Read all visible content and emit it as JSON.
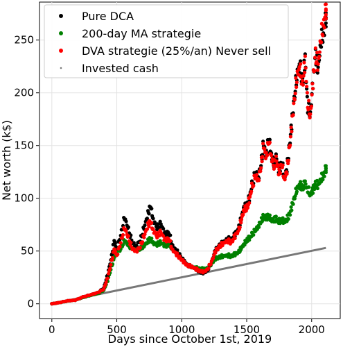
{
  "chart_data": {
    "type": "scatter",
    "xlabel": "Days since October 1st, 2019",
    "ylabel": "Net worth (k$)",
    "xlim": [
      -95,
      2220
    ],
    "ylim": [
      -14,
      286
    ],
    "xticks": [
      0,
      500,
      1000,
      1500,
      2000
    ],
    "yticks": [
      0,
      50,
      100,
      150,
      200,
      250
    ],
    "grid": true,
    "legend_position": "top-left",
    "series": [
      {
        "name": "Pure DCA",
        "color": "#000000",
        "marker": "dot",
        "points": [
          [
            0,
            0
          ],
          [
            60,
            1.2
          ],
          [
            120,
            2.8
          ],
          [
            180,
            3.5
          ],
          [
            240,
            6.5
          ],
          [
            300,
            8.5
          ],
          [
            360,
            11
          ],
          [
            400,
            15
          ],
          [
            430,
            28
          ],
          [
            460,
            45
          ],
          [
            480,
            60
          ],
          [
            500,
            52
          ],
          [
            530,
            65
          ],
          [
            560,
            82
          ],
          [
            590,
            70
          ],
          [
            620,
            58
          ],
          [
            650,
            55
          ],
          [
            680,
            60
          ],
          [
            710,
            72
          ],
          [
            740,
            85
          ],
          [
            760,
            93
          ],
          [
            780,
            80
          ],
          [
            810,
            72
          ],
          [
            840,
            76
          ],
          [
            870,
            66
          ],
          [
            900,
            68
          ],
          [
            930,
            55
          ],
          [
            960,
            50
          ],
          [
            990,
            45
          ],
          [
            1020,
            40
          ],
          [
            1050,
            36
          ],
          [
            1080,
            35
          ],
          [
            1110,
            33
          ],
          [
            1140,
            30
          ],
          [
            1170,
            29
          ],
          [
            1200,
            32
          ],
          [
            1230,
            40
          ],
          [
            1260,
            51
          ],
          [
            1290,
            55
          ],
          [
            1320,
            58
          ],
          [
            1350,
            62
          ],
          [
            1380,
            60
          ],
          [
            1410,
            66
          ],
          [
            1440,
            72
          ],
          [
            1460,
            82
          ],
          [
            1480,
            93
          ],
          [
            1500,
            92
          ],
          [
            1520,
            100
          ],
          [
            1540,
            112
          ],
          [
            1570,
            125
          ],
          [
            1590,
            120
          ],
          [
            1610,
            132
          ],
          [
            1630,
            152
          ],
          [
            1650,
            140
          ],
          [
            1670,
            158
          ],
          [
            1690,
            142
          ],
          [
            1710,
            132
          ],
          [
            1730,
            138
          ],
          [
            1750,
            125
          ],
          [
            1770,
            135
          ],
          [
            1790,
            120
          ],
          [
            1810,
            128
          ],
          [
            1830,
            150
          ],
          [
            1850,
            175
          ],
          [
            1870,
            200
          ],
          [
            1890,
            220
          ],
          [
            1910,
            225
          ],
          [
            1930,
            210
          ],
          [
            1950,
            232
          ],
          [
            1970,
            185
          ],
          [
            1990,
            180
          ],
          [
            2010,
            210
          ],
          [
            2030,
            235
          ],
          [
            2050,
            222
          ],
          [
            2070,
            248
          ],
          [
            2090,
            255
          ],
          [
            2110,
            270
          ]
        ]
      },
      {
        "name": "200-day MA strategie",
        "color": "#008000",
        "marker": "dot",
        "points": [
          [
            0,
            0
          ],
          [
            60,
            1.2
          ],
          [
            120,
            2.6
          ],
          [
            180,
            3.5
          ],
          [
            240,
            6
          ],
          [
            300,
            8
          ],
          [
            360,
            10
          ],
          [
            400,
            13
          ],
          [
            430,
            22
          ],
          [
            460,
            35
          ],
          [
            480,
            44
          ],
          [
            500,
            48
          ],
          [
            530,
            52
          ],
          [
            560,
            60
          ],
          [
            590,
            55
          ],
          [
            620,
            53
          ],
          [
            650,
            51
          ],
          [
            680,
            52
          ],
          [
            710,
            55
          ],
          [
            740,
            59
          ],
          [
            760,
            62
          ],
          [
            780,
            58
          ],
          [
            810,
            56
          ],
          [
            840,
            58
          ],
          [
            870,
            55
          ],
          [
            900,
            56
          ],
          [
            930,
            52
          ],
          [
            960,
            48
          ],
          [
            990,
            44
          ],
          [
            1020,
            40
          ],
          [
            1050,
            36
          ],
          [
            1080,
            35
          ],
          [
            1110,
            34
          ],
          [
            1140,
            33
          ],
          [
            1170,
            33
          ],
          [
            1200,
            34
          ],
          [
            1230,
            38
          ],
          [
            1260,
            43
          ],
          [
            1290,
            44
          ],
          [
            1320,
            45
          ],
          [
            1350,
            46
          ],
          [
            1380,
            45
          ],
          [
            1410,
            47
          ],
          [
            1440,
            49
          ],
          [
            1460,
            53
          ],
          [
            1480,
            57
          ],
          [
            1500,
            60
          ],
          [
            1520,
            62
          ],
          [
            1540,
            65
          ],
          [
            1570,
            70
          ],
          [
            1590,
            74
          ],
          [
            1610,
            78
          ],
          [
            1630,
            82
          ],
          [
            1650,
            81
          ],
          [
            1670,
            83
          ],
          [
            1690,
            80
          ],
          [
            1710,
            79
          ],
          [
            1730,
            80
          ],
          [
            1750,
            78
          ],
          [
            1770,
            79
          ],
          [
            1790,
            78
          ],
          [
            1810,
            80
          ],
          [
            1830,
            84
          ],
          [
            1850,
            93
          ],
          [
            1870,
            102
          ],
          [
            1890,
            110
          ],
          [
            1910,
            112
          ],
          [
            1930,
            110
          ],
          [
            1950,
            114
          ],
          [
            1970,
            108
          ],
          [
            1990,
            104
          ],
          [
            2010,
            108
          ],
          [
            2030,
            113
          ],
          [
            2050,
            112
          ],
          [
            2070,
            118
          ],
          [
            2090,
            121
          ],
          [
            2110,
            128
          ]
        ]
      },
      {
        "name": "DVA strategie (25%/an) Never sell",
        "color": "#ff0000",
        "marker": "dot",
        "points": [
          [
            0,
            0
          ],
          [
            60,
            1.2
          ],
          [
            120,
            2.8
          ],
          [
            180,
            3.5
          ],
          [
            240,
            6.5
          ],
          [
            300,
            8.5
          ],
          [
            360,
            11
          ],
          [
            400,
            14
          ],
          [
            430,
            25
          ],
          [
            460,
            40
          ],
          [
            480,
            52
          ],
          [
            500,
            46
          ],
          [
            530,
            58
          ],
          [
            560,
            72
          ],
          [
            590,
            62
          ],
          [
            620,
            52
          ],
          [
            650,
            50
          ],
          [
            680,
            54
          ],
          [
            710,
            64
          ],
          [
            740,
            74
          ],
          [
            760,
            78
          ],
          [
            780,
            70
          ],
          [
            810,
            64
          ],
          [
            840,
            68
          ],
          [
            870,
            60
          ],
          [
            900,
            62
          ],
          [
            930,
            51
          ],
          [
            960,
            47
          ],
          [
            990,
            43
          ],
          [
            1020,
            39
          ],
          [
            1050,
            36
          ],
          [
            1080,
            35
          ],
          [
            1110,
            33
          ],
          [
            1140,
            31
          ],
          [
            1170,
            30
          ],
          [
            1200,
            33
          ],
          [
            1230,
            40
          ],
          [
            1260,
            50
          ],
          [
            1290,
            54
          ],
          [
            1320,
            57
          ],
          [
            1350,
            60
          ],
          [
            1380,
            58
          ],
          [
            1410,
            64
          ],
          [
            1440,
            70
          ],
          [
            1460,
            80
          ],
          [
            1480,
            90
          ],
          [
            1500,
            90
          ],
          [
            1520,
            98
          ],
          [
            1540,
            110
          ],
          [
            1570,
            122
          ],
          [
            1590,
            118
          ],
          [
            1610,
            130
          ],
          [
            1630,
            150
          ],
          [
            1650,
            138
          ],
          [
            1670,
            155
          ],
          [
            1690,
            140
          ],
          [
            1710,
            130
          ],
          [
            1730,
            136
          ],
          [
            1750,
            123
          ],
          [
            1770,
            133
          ],
          [
            1790,
            118
          ],
          [
            1810,
            126
          ],
          [
            1830,
            148
          ],
          [
            1850,
            173
          ],
          [
            1870,
            198
          ],
          [
            1890,
            218
          ],
          [
            1910,
            222
          ],
          [
            1930,
            208
          ],
          [
            1950,
            230
          ],
          [
            1970,
            190
          ],
          [
            1990,
            178
          ],
          [
            2010,
            210
          ],
          [
            2030,
            236
          ],
          [
            2050,
            225
          ],
          [
            2070,
            252
          ],
          [
            2090,
            262
          ],
          [
            2110,
            278
          ]
        ]
      },
      {
        "name": "Invested cash",
        "color": "#777777",
        "marker": "line",
        "points": [
          [
            0,
            0
          ],
          [
            2110,
            53
          ]
        ]
      }
    ]
  }
}
